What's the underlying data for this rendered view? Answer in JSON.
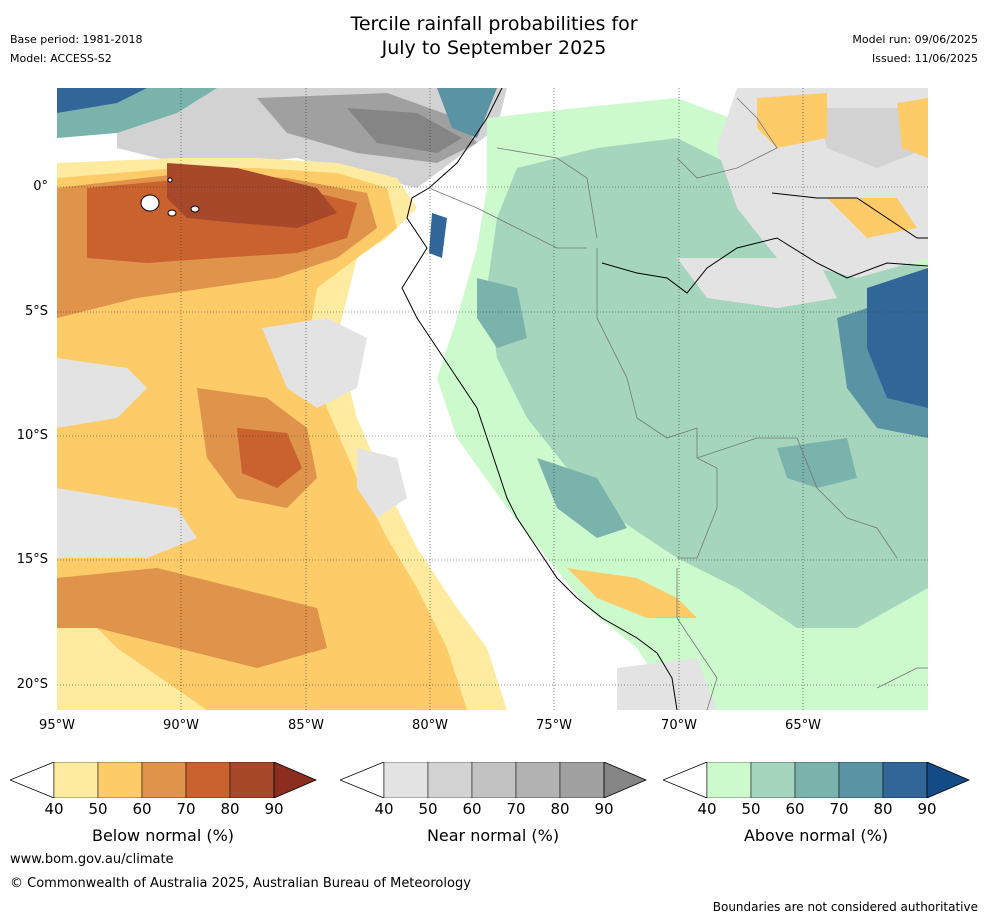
{
  "header": {
    "title_line1": "Tercile rainfall probabilities for",
    "title_line2": "July to September 2025",
    "base_period": "Base period: 1981-2018",
    "model": "Model: ACCESS-S2",
    "model_run": "Model run: 09/06/2025",
    "issued": "Issued: 11/06/2025"
  },
  "axes": {
    "lat_labels": [
      "0°",
      "5°S",
      "10°S",
      "15°S",
      "20°S"
    ],
    "lon_labels": [
      "95°W",
      "90°W",
      "85°W",
      "80°W",
      "75°W",
      "70°W",
      "65°W"
    ]
  },
  "colorbars": [
    {
      "label": "Below normal (%)",
      "ticks": [
        "40",
        "50",
        "60",
        "70",
        "80",
        "90"
      ],
      "colors": [
        "#ffffff",
        "#feeba0",
        "#fdcb68",
        "#e0934a",
        "#c9622f",
        "#a8482a",
        "#8b2e1e"
      ]
    },
    {
      "label": "Near normal (%)",
      "ticks": [
        "40",
        "50",
        "60",
        "70",
        "80",
        "90"
      ],
      "colors": [
        "#ffffff",
        "#e3e3e3",
        "#d2d2d2",
        "#c2c2c2",
        "#b2b2b2",
        "#a0a0a0",
        "#858585"
      ]
    },
    {
      "label": "Above normal (%)",
      "ticks": [
        "40",
        "50",
        "60",
        "70",
        "80",
        "90"
      ],
      "colors": [
        "#ffffff",
        "#ccfacc",
        "#a5d6bd",
        "#7ab3ab",
        "#5a93a4",
        "#336698",
        "#124b85"
      ]
    }
  ],
  "footer": {
    "website": "www.bom.gov.au/climate",
    "copyright": "© Commonwealth of Australia 2025, Australian Bureau of Meteorology",
    "disclaimer": "Boundaries are not considered authoritative"
  }
}
